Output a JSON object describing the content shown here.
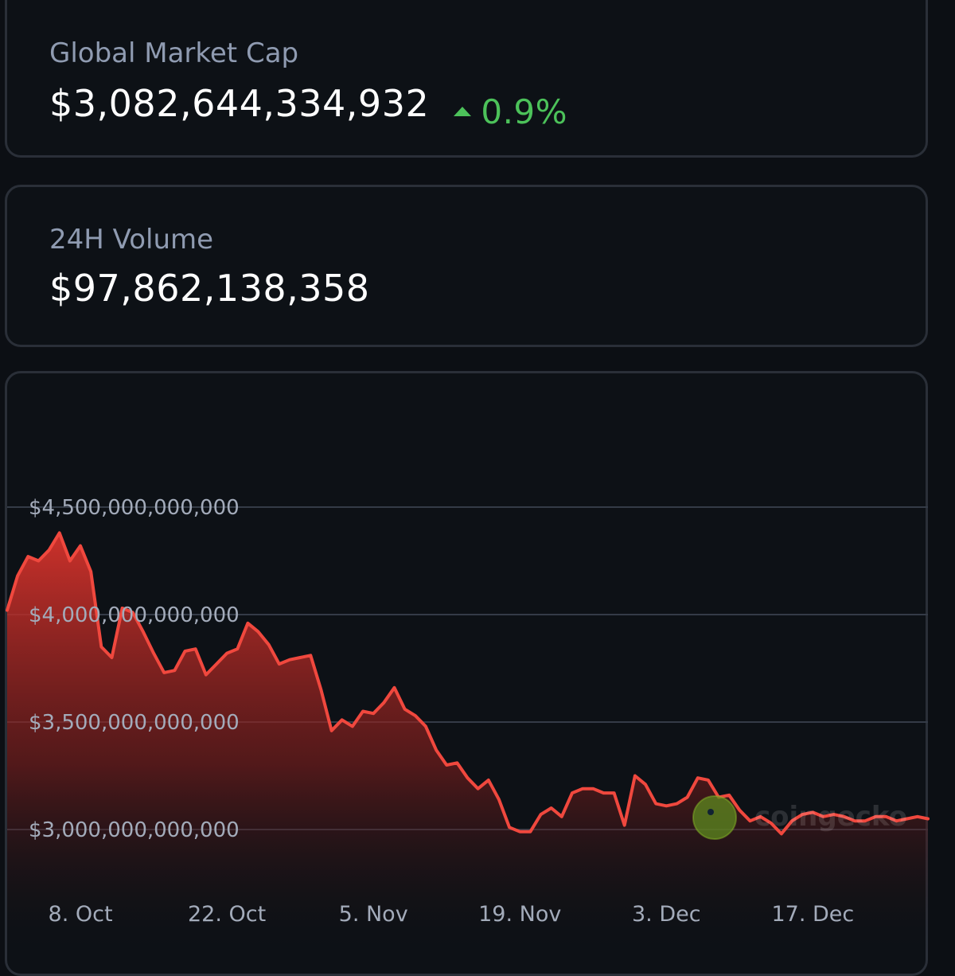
{
  "market_cap": {
    "label": "Global Market Cap",
    "value": "$3,082,644,334,932",
    "change": "0.9%",
    "change_direction": "up",
    "change_color": "#4cc25a"
  },
  "volume": {
    "label": "24H Volume",
    "value": "$97,862,138,358"
  },
  "watermark": "coingecko",
  "chart_data": {
    "type": "area",
    "title": "",
    "xlabel": "",
    "ylabel": "",
    "line_color": "#f0483e",
    "y_ticks": [
      "$4,500,000,000,000",
      "$4,000,000,000,000",
      "$3,500,000,000,000",
      "$3,000,000,000,000"
    ],
    "y_tick_values": [
      4500000000000,
      4000000000000,
      3500000000000,
      3000000000000
    ],
    "x_ticks": [
      "8. Oct",
      "22. Oct",
      "5. Nov",
      "19. Nov",
      "3. Dec",
      "17. Dec"
    ],
    "x_tick_values": [
      "2025-10-08",
      "2025-10-22",
      "2025-11-05",
      "2025-11-19",
      "2025-12-03",
      "2025-12-17"
    ],
    "grid": true,
    "x": [
      "2025-10-01",
      "2025-10-02",
      "2025-10-03",
      "2025-10-04",
      "2025-10-05",
      "2025-10-06",
      "2025-10-07",
      "2025-10-08",
      "2025-10-09",
      "2025-10-10",
      "2025-10-11",
      "2025-10-12",
      "2025-10-13",
      "2025-10-14",
      "2025-10-15",
      "2025-10-16",
      "2025-10-17",
      "2025-10-18",
      "2025-10-19",
      "2025-10-20",
      "2025-10-21",
      "2025-10-22",
      "2025-10-23",
      "2025-10-24",
      "2025-10-25",
      "2025-10-26",
      "2025-10-27",
      "2025-10-28",
      "2025-10-29",
      "2025-10-30",
      "2025-10-31",
      "2025-11-01",
      "2025-11-02",
      "2025-11-03",
      "2025-11-04",
      "2025-11-05",
      "2025-11-06",
      "2025-11-07",
      "2025-11-08",
      "2025-11-09",
      "2025-11-10",
      "2025-11-11",
      "2025-11-12",
      "2025-11-13",
      "2025-11-14",
      "2025-11-15",
      "2025-11-16",
      "2025-11-17",
      "2025-11-18",
      "2025-11-19",
      "2025-11-20",
      "2025-11-21",
      "2025-11-22",
      "2025-11-23",
      "2025-11-24",
      "2025-11-25",
      "2025-11-26",
      "2025-11-27",
      "2025-11-28",
      "2025-11-29",
      "2025-11-30",
      "2025-12-01",
      "2025-12-02",
      "2025-12-03",
      "2025-12-04",
      "2025-12-05",
      "2025-12-06",
      "2025-12-07",
      "2025-12-08",
      "2025-12-09",
      "2025-12-10",
      "2025-12-11",
      "2025-12-12",
      "2025-12-13",
      "2025-12-14",
      "2025-12-15",
      "2025-12-16",
      "2025-12-17",
      "2025-12-18",
      "2025-12-19",
      "2025-12-20",
      "2025-12-21",
      "2025-12-22",
      "2025-12-23",
      "2025-12-24",
      "2025-12-25",
      "2025-12-26",
      "2025-12-27",
      "2025-12-28"
    ],
    "values": [
      4020000000000,
      4180000000000,
      4270000000000,
      4250000000000,
      4300000000000,
      4380000000000,
      4250000000000,
      4320000000000,
      4200000000000,
      3850000000000,
      3800000000000,
      4030000000000,
      4010000000000,
      3920000000000,
      3820000000000,
      3730000000000,
      3740000000000,
      3830000000000,
      3840000000000,
      3720000000000,
      3770000000000,
      3820000000000,
      3840000000000,
      3960000000000,
      3920000000000,
      3860000000000,
      3770000000000,
      3790000000000,
      3800000000000,
      3810000000000,
      3650000000000,
      3460000000000,
      3510000000000,
      3480000000000,
      3550000000000,
      3540000000000,
      3590000000000,
      3660000000000,
      3560000000000,
      3530000000000,
      3480000000000,
      3370000000000,
      3300000000000,
      3310000000000,
      3240000000000,
      3190000000000,
      3230000000000,
      3140000000000,
      3010000000000,
      2990000000000,
      2990000000000,
      3070000000000,
      3100000000000,
      3060000000000,
      3170000000000,
      3190000000000,
      3190000000000,
      3170000000000,
      3170000000000,
      3020000000000,
      3250000000000,
      3210000000000,
      3120000000000,
      3110000000000,
      3120000000000,
      3150000000000,
      3240000000000,
      3230000000000,
      3150000000000,
      3160000000000,
      3090000000000,
      3040000000000,
      3060000000000,
      3030000000000,
      2980000000000,
      3040000000000,
      3070000000000,
      3080000000000,
      3060000000000,
      3070000000000,
      3060000000000,
      3040000000000,
      3040000000000,
      3060000000000,
      3060000000000,
      3040000000000,
      3050000000000,
      3060000000000,
      3050000000000
    ],
    "y_range": [
      2700000000000,
      4900000000000
    ]
  }
}
